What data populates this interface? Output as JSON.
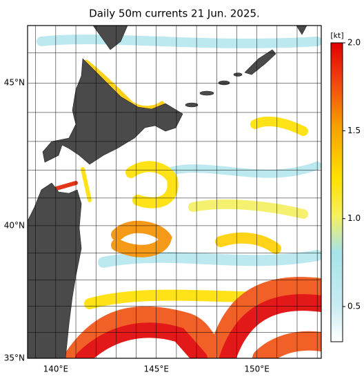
{
  "map": {
    "title": "Daily 50m currents 21 Jun. 2025.",
    "xlim": [
      138.6,
      153.2
    ],
    "ylim": [
      35,
      46.9
    ],
    "xticks": [
      {
        "value": 140,
        "label": "140°E"
      },
      {
        "value": 145,
        "label": "145°E"
      },
      {
        "value": 150,
        "label": "150°E"
      }
    ],
    "yticks": [
      {
        "value": 35,
        "label": "35°N"
      },
      {
        "value": 40,
        "label": "40°N"
      },
      {
        "value": 45,
        "label": "45°N"
      }
    ],
    "minor_xticks": [
      139,
      141,
      142,
      143,
      144,
      146,
      147,
      148,
      149,
      151,
      152,
      153
    ],
    "minor_yticks": [
      36,
      37,
      38,
      39,
      41,
      42,
      43,
      44,
      46
    ],
    "colorbar": {
      "label": "[kt]",
      "lim": [
        0.3,
        2.0
      ],
      "ticks": [
        0.5,
        {
          "value": 1.0,
          "label": "1.0"
        },
        1.5,
        {
          "value": 2.0,
          "label": "2.0"
        }
      ]
    }
  }
}
